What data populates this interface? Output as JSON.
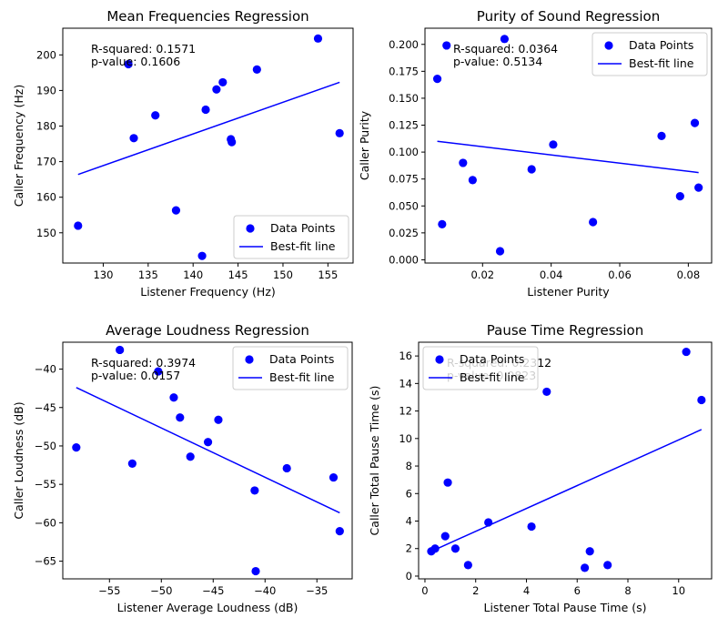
{
  "colors": {
    "points": "#0000ff",
    "line": "#0000ff",
    "axis": "#000000",
    "legend_border": "#cccccc"
  },
  "chart_data": [
    {
      "type": "scatter",
      "title": "Mean Frequencies Regression",
      "xlabel": "Listener Frequency (Hz)",
      "ylabel": "Caller Frequency (Hz)",
      "xlim": [
        125.5,
        157.8
      ],
      "ylim": [
        141.5,
        207.5
      ],
      "xticks": [
        130,
        135,
        140,
        145,
        150,
        155
      ],
      "yticks": [
        150,
        160,
        170,
        180,
        190,
        200
      ],
      "legend": {
        "position": "lower-right",
        "labels": [
          "Data Points",
          "Best-fit line"
        ]
      },
      "annotation": {
        "position": "top-left",
        "lines": [
          "R-squared: 0.1571",
          "p-value: 0.1606"
        ]
      },
      "points": [
        {
          "x": 127.2,
          "y": 152.0
        },
        {
          "x": 132.8,
          "y": 197.4
        },
        {
          "x": 133.4,
          "y": 176.6
        },
        {
          "x": 135.8,
          "y": 183.0
        },
        {
          "x": 138.1,
          "y": 156.3
        },
        {
          "x": 141.0,
          "y": 143.5
        },
        {
          "x": 141.4,
          "y": 184.6
        },
        {
          "x": 142.6,
          "y": 190.3
        },
        {
          "x": 143.3,
          "y": 192.3
        },
        {
          "x": 144.2,
          "y": 176.3
        },
        {
          "x": 144.3,
          "y": 175.5
        },
        {
          "x": 147.1,
          "y": 195.9
        },
        {
          "x": 153.9,
          "y": 204.6
        },
        {
          "x": 156.3,
          "y": 178.0
        }
      ],
      "fit": {
        "x0": 127.2,
        "y0": 166.4,
        "x1": 156.3,
        "y1": 192.3
      }
    },
    {
      "type": "scatter",
      "title": "Purity of Sound Regression",
      "xlabel": "Listener Purity",
      "ylabel": "Caller Purity",
      "xlim": [
        0.0032,
        0.0868
      ],
      "ylim": [
        -0.003,
        0.215
      ],
      "xticks": [
        0.02,
        0.04,
        0.06,
        0.08
      ],
      "yticks": [
        0.0,
        0.025,
        0.05,
        0.075,
        0.1,
        0.125,
        0.15,
        0.175,
        0.2
      ],
      "xtick_labels": [
        "0.02",
        "0.04",
        "0.06",
        "0.08"
      ],
      "ytick_labels": [
        "0.000",
        "0.025",
        "0.050",
        "0.075",
        "0.100",
        "0.125",
        "0.150",
        "0.175",
        "0.200"
      ],
      "legend": {
        "position": "top-right",
        "labels": [
          "Data Points",
          "Best-fit line"
        ]
      },
      "annotation": {
        "position": "top-left",
        "lines": [
          "R-squared: 0.0364",
          "p-value: 0.5134"
        ]
      },
      "points": [
        {
          "x": 0.0068,
          "y": 0.168
        },
        {
          "x": 0.0082,
          "y": 0.033
        },
        {
          "x": 0.0095,
          "y": 0.199
        },
        {
          "x": 0.0143,
          "y": 0.09
        },
        {
          "x": 0.0171,
          "y": 0.074
        },
        {
          "x": 0.0251,
          "y": 0.008
        },
        {
          "x": 0.0264,
          "y": 0.205
        },
        {
          "x": 0.0343,
          "y": 0.084
        },
        {
          "x": 0.0406,
          "y": 0.107
        },
        {
          "x": 0.0522,
          "y": 0.035
        },
        {
          "x": 0.0722,
          "y": 0.115
        },
        {
          "x": 0.0776,
          "y": 0.059
        },
        {
          "x": 0.0819,
          "y": 0.127
        },
        {
          "x": 0.083,
          "y": 0.067
        }
      ],
      "fit": {
        "x0": 0.0068,
        "y0": 0.11,
        "x1": 0.083,
        "y1": 0.081
      }
    },
    {
      "type": "scatter",
      "title": "Average Loudness Regression",
      "xlabel": "Listener Average Loudness (dB)",
      "ylabel": "Caller Loudness (dB)",
      "xlim": [
        -59.5,
        -31.6
      ],
      "ylim": [
        -67.3,
        -36.5
      ],
      "xticks": [
        -55,
        -50,
        -45,
        -40,
        -35
      ],
      "yticks": [
        -65,
        -60,
        -55,
        -50,
        -45,
        -40
      ],
      "legend": {
        "position": "top-right",
        "labels": [
          "Data Points",
          "Best-fit line"
        ]
      },
      "annotation": {
        "position": "top-left",
        "lines": [
          "R-squared: 0.3974",
          "p-value: 0.0157"
        ]
      },
      "points": [
        {
          "x": -58.2,
          "y": -50.2
        },
        {
          "x": -54.0,
          "y": -37.5
        },
        {
          "x": -52.8,
          "y": -52.3
        },
        {
          "x": -50.3,
          "y": -40.3
        },
        {
          "x": -48.8,
          "y": -43.7
        },
        {
          "x": -48.2,
          "y": -46.3
        },
        {
          "x": -47.2,
          "y": -51.4
        },
        {
          "x": -45.5,
          "y": -49.5
        },
        {
          "x": -44.5,
          "y": -46.6
        },
        {
          "x": -41.0,
          "y": -55.8
        },
        {
          "x": -40.9,
          "y": -66.3
        },
        {
          "x": -37.9,
          "y": -52.9
        },
        {
          "x": -33.4,
          "y": -54.1
        },
        {
          "x": -32.8,
          "y": -61.1
        }
      ],
      "fit": {
        "x0": -58.2,
        "y0": -42.4,
        "x1": -32.8,
        "y1": -58.7
      }
    },
    {
      "type": "scatter",
      "title": "Pause Time Regression",
      "xlabel": "Listener Total Pause Time (s)",
      "ylabel": "Caller Total Pause Time (s)",
      "xlim": [
        -0.25,
        11.3
      ],
      "ylim": [
        -0.2,
        17.0
      ],
      "xticks": [
        0,
        2,
        4,
        6,
        8,
        10
      ],
      "yticks": [
        0,
        2,
        4,
        6,
        8,
        10,
        12,
        14,
        16
      ],
      "legend": {
        "position": "top-left",
        "labels": [
          "Data Points",
          "Best-fit line"
        ]
      },
      "annotation": {
        "position": "top-left",
        "lines": [
          "R-squared: 0.2312",
          "p-value: 0.0823"
        ]
      },
      "points": [
        {
          "x": 0.25,
          "y": 1.8
        },
        {
          "x": 0.4,
          "y": 2.0
        },
        {
          "x": 0.8,
          "y": 2.9
        },
        {
          "x": 0.9,
          "y": 6.8
        },
        {
          "x": 1.2,
          "y": 2.0
        },
        {
          "x": 1.7,
          "y": 0.8
        },
        {
          "x": 2.5,
          "y": 3.9
        },
        {
          "x": 4.2,
          "y": 3.6
        },
        {
          "x": 4.8,
          "y": 13.4
        },
        {
          "x": 6.3,
          "y": 0.6
        },
        {
          "x": 6.5,
          "y": 1.8
        },
        {
          "x": 7.2,
          "y": 0.8
        },
        {
          "x": 10.3,
          "y": 16.3
        },
        {
          "x": 10.9,
          "y": 12.8
        }
      ],
      "fit": {
        "x0": 0.25,
        "y0": 1.8,
        "x1": 10.9,
        "y1": 10.65
      }
    }
  ]
}
